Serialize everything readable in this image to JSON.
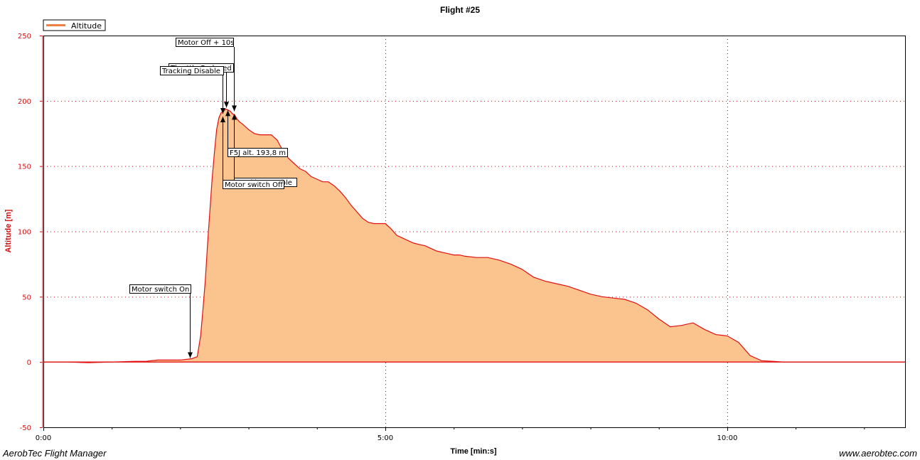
{
  "chart_data": {
    "type": "area",
    "title": "Flight #25",
    "xlabel": "Time [min:s]",
    "ylabel": "Altitude [m]",
    "xlim": [
      0,
      756
    ],
    "ylim": [
      -50,
      250
    ],
    "x_ticks": [
      {
        "value": 0,
        "label": "0:00"
      },
      {
        "value": 300,
        "label": "5:00"
      },
      {
        "value": 600,
        "label": "10:00"
      }
    ],
    "x_minor_ticks": [
      60,
      120,
      180,
      240,
      360,
      420,
      480,
      540,
      660,
      720
    ],
    "y_ticks": [
      -50,
      0,
      50,
      100,
      150,
      200,
      250
    ],
    "grid": true,
    "legend": "top-left",
    "colors": {
      "line": "#e01010",
      "fill": "#fbc48f",
      "grid": "#333333",
      "ytext": "#d01010"
    },
    "series": [
      {
        "name": "Altitude",
        "x": [
          0,
          20,
          40,
          60,
          80,
          90,
          100,
          120,
          130,
          135,
          138,
          140,
          142,
          144,
          146,
          148,
          150,
          152,
          154,
          156,
          158,
          160,
          162,
          164,
          166,
          168,
          170,
          172,
          175,
          180,
          185,
          190,
          195,
          200,
          205,
          210,
          215,
          220,
          225,
          230,
          235,
          240,
          245,
          250,
          255,
          260,
          265,
          270,
          275,
          280,
          285,
          290,
          295,
          300,
          305,
          310,
          315,
          320,
          325,
          330,
          335,
          340,
          345,
          350,
          355,
          360,
          365,
          370,
          380,
          390,
          400,
          410,
          420,
          430,
          440,
          450,
          460,
          470,
          480,
          490,
          500,
          510,
          520,
          530,
          540,
          550,
          560,
          570,
          580,
          590,
          600,
          610,
          620,
          630,
          640,
          650,
          655,
          660,
          665,
          670,
          675,
          680,
          685,
          690,
          695,
          700,
          705,
          710,
          715,
          720,
          725,
          730,
          735,
          756
        ],
        "y": [
          0,
          0,
          -0.5,
          0,
          0.5,
          0.5,
          1.5,
          1.5,
          2.5,
          4,
          20,
          40,
          62,
          90,
          115,
          140,
          160,
          178,
          187,
          191,
          192,
          193.8,
          193,
          192,
          190,
          189,
          186,
          184,
          182,
          178,
          175,
          174,
          174,
          174,
          170,
          162,
          156,
          152,
          148,
          146,
          142,
          140,
          138,
          138,
          135,
          131,
          126,
          120,
          115,
          110,
          107,
          106,
          106,
          106,
          102,
          97,
          95,
          93,
          91,
          90,
          89,
          87,
          85,
          84,
          83,
          82,
          82,
          81,
          80,
          80,
          78,
          75,
          71,
          65,
          62,
          60,
          58,
          55,
          52,
          50,
          49,
          48,
          45,
          40,
          33,
          27,
          28,
          30,
          25,
          21,
          20,
          15,
          5,
          1,
          0.5,
          0,
          0,
          0,
          0,
          0,
          0,
          0,
          0,
          0,
          0,
          0,
          0,
          0,
          0,
          0,
          0,
          0,
          0,
          0
        ]
      }
    ],
    "annotations": [
      {
        "text": "Motor switch On",
        "x": 129,
        "y": 2
      },
      {
        "text": "Tracking Disable",
        "x": 158,
        "y": 189
      },
      {
        "text": "Throttle Reduced",
        "x": 161,
        "y": 193.8
      },
      {
        "text": "Motor Off + 10s",
        "x": 168,
        "y": 191
      },
      {
        "text": "F5J alt. 193,8 m",
        "x": 161,
        "y": 193.8
      },
      {
        "text": "Motor switch Off",
        "x": 158,
        "y": 189
      },
      {
        "text": "Tracking Enable",
        "x": 168,
        "y": 191
      }
    ]
  },
  "footer": {
    "left": "AerobTec Flight Manager",
    "right": "www.aerobtec.com"
  }
}
